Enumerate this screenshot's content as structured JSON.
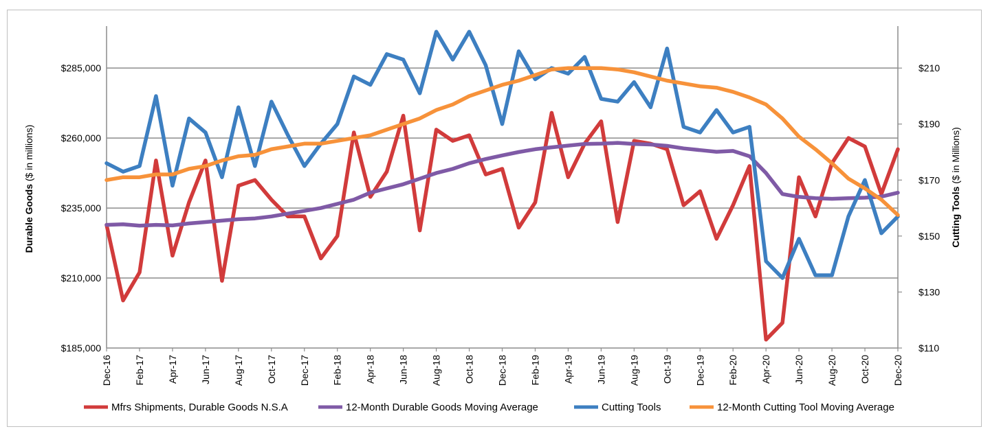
{
  "chart_data": {
    "type": "line",
    "title": "",
    "x": [
      "Dec-16",
      "Jan-17",
      "Feb-17",
      "Mar-17",
      "Apr-17",
      "May-17",
      "Jun-17",
      "Jul-17",
      "Aug-17",
      "Sep-17",
      "Oct-17",
      "Nov-17",
      "Dec-17",
      "Jan-18",
      "Feb-18",
      "Mar-18",
      "Apr-18",
      "May-18",
      "Jun-18",
      "Jul-18",
      "Aug-18",
      "Sep-18",
      "Oct-18",
      "Nov-18",
      "Dec-18",
      "Jan-19",
      "Feb-19",
      "Mar-19",
      "Apr-19",
      "May-19",
      "Jun-19",
      "Jul-19",
      "Aug-19",
      "Sep-19",
      "Oct-19",
      "Nov-19",
      "Dec-19",
      "Jan-20",
      "Feb-20",
      "Mar-20",
      "Apr-20",
      "May-20",
      "Jun-20",
      "Jul-20",
      "Aug-20",
      "Sep-20",
      "Oct-20",
      "Nov-20",
      "Dec-20"
    ],
    "x_tick_labels": [
      "Dec-16",
      "Feb-17",
      "Apr-17",
      "Jun-17",
      "Aug-17",
      "Oct-17",
      "Dec-17",
      "Feb-18",
      "Apr-18",
      "Jun-18",
      "Aug-18",
      "Oct-18",
      "Dec-18",
      "Feb-19",
      "Apr-19",
      "Jun-19",
      "Aug-19",
      "Oct-19",
      "Dec-19",
      "Feb-20",
      "Apr-20",
      "Jun-20",
      "Aug-20",
      "Oct-20",
      "Dec-20"
    ],
    "y_left": {
      "label_bold": "Durable Goods",
      "label_rest": " ($ in millions)",
      "lim": [
        185000,
        300000
      ],
      "ticks": [
        185000,
        210000,
        235000,
        260000,
        285000
      ],
      "tick_labels": [
        "$185,000",
        "$210,000",
        "$235,000",
        "$260,000",
        "$285,000"
      ]
    },
    "y_right": {
      "label_bold": "Cutting Tools",
      "label_rest": " ($ in Millions)",
      "lim": [
        110,
        225
      ],
      "ticks": [
        110,
        130,
        150,
        170,
        190,
        210
      ],
      "tick_labels": [
        "$110",
        "$130",
        "$150",
        "$170",
        "$190",
        "$210"
      ]
    },
    "grid": true,
    "legend_position": "bottom",
    "series": [
      {
        "name": "Mfrs Shipments, Durable Goods N.S.A",
        "axis": "left",
        "color": "#d13b3b",
        "values": [
          229000,
          202000,
          212000,
          252000,
          218000,
          237000,
          252000,
          209000,
          243000,
          245000,
          238000,
          232000,
          232000,
          217000,
          225000,
          262000,
          239000,
          248000,
          268000,
          227000,
          263000,
          259000,
          261000,
          247000,
          249000,
          228000,
          237000,
          269000,
          246000,
          258000,
          266000,
          230000,
          259000,
          258000,
          256000,
          236000,
          241000,
          224000,
          236000,
          250000,
          188000,
          194000,
          246000,
          232000,
          251000,
          260000,
          257000,
          240000,
          256000
        ]
      },
      {
        "name": "12-Month Durable Goods Moving Average",
        "axis": "left",
        "color": "#7f5aa6",
        "values": [
          229000,
          229200,
          228700,
          229000,
          228800,
          229500,
          230000,
          230500,
          231000,
          231300,
          232000,
          233000,
          234000,
          235000,
          236500,
          238000,
          240500,
          242000,
          243500,
          245500,
          247500,
          249000,
          251000,
          252500,
          253800,
          255000,
          256000,
          256700,
          257300,
          257900,
          258000,
          258300,
          257900,
          257700,
          257200,
          256300,
          255700,
          255100,
          255400,
          253500,
          247500,
          240000,
          239000,
          238500,
          238300,
          238500,
          238700,
          239100,
          240500
        ]
      },
      {
        "name": "Cutting Tools",
        "axis": "right",
        "color": "#3d7fc1",
        "values": [
          176,
          173,
          175,
          200,
          168,
          192,
          187,
          171,
          196,
          175,
          198,
          186,
          175,
          183,
          190,
          207,
          204,
          215,
          213,
          201,
          223,
          213,
          223,
          211,
          190,
          216,
          206,
          210,
          208,
          214,
          199,
          198,
          205,
          196,
          217,
          189,
          187,
          195,
          187,
          189,
          141,
          135,
          149,
          136,
          136,
          157,
          170,
          151,
          157
        ]
      },
      {
        "name": "12-Month Cutting Tool Moving Average",
        "axis": "right",
        "color": "#f7923a",
        "values": [
          170,
          171,
          171,
          172,
          172,
          174,
          175,
          177,
          178.5,
          179,
          181,
          182,
          183,
          183,
          184,
          185,
          186,
          188,
          190,
          192,
          195,
          197,
          200,
          202,
          204,
          205.5,
          207.5,
          209.5,
          210,
          210,
          210,
          209.5,
          208.5,
          207,
          205.5,
          204.5,
          203.5,
          203,
          201.5,
          199.5,
          197,
          192,
          185.5,
          181,
          176,
          170.5,
          167,
          163,
          157.5
        ]
      }
    ]
  }
}
